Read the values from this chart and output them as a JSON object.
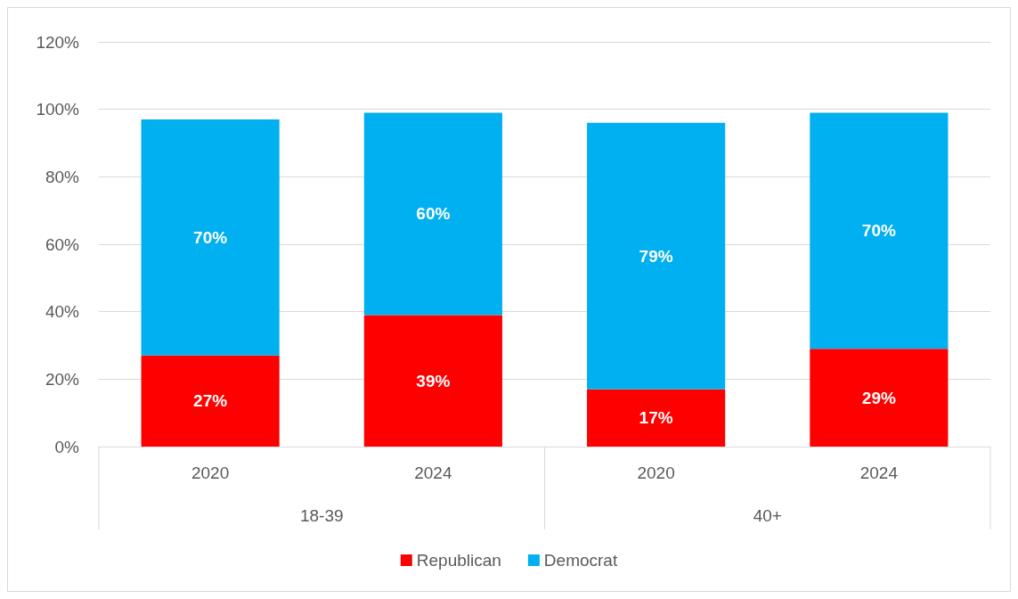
{
  "chart_data": {
    "type": "bar",
    "stacked": true,
    "categories": [
      "2020",
      "2024",
      "2020",
      "2024"
    ],
    "series": [
      {
        "name": "Republican",
        "color": "#ff0000",
        "values": [
          27,
          39,
          17,
          29
        ],
        "value_labels": [
          "27%",
          "39%",
          "17%",
          "29%"
        ]
      },
      {
        "name": "Democrat",
        "color": "#00b0f0",
        "values": [
          70,
          60,
          79,
          70
        ],
        "value_labels": [
          "70%",
          "60%",
          "79%",
          "70%"
        ]
      }
    ],
    "ylim": [
      0,
      120
    ],
    "yticks": [
      {
        "value": 0,
        "label": "0%"
      },
      {
        "value": 20,
        "label": "20%"
      },
      {
        "value": 40,
        "label": "40%"
      },
      {
        "value": 60,
        "label": "60%"
      },
      {
        "value": 80,
        "label": "80%"
      },
      {
        "value": 100,
        "label": "100%"
      },
      {
        "value": 120,
        "label": "120%"
      }
    ],
    "grid": "y",
    "legend": "bottom",
    "annotations": [
      "18-39",
      "40+"
    ]
  }
}
